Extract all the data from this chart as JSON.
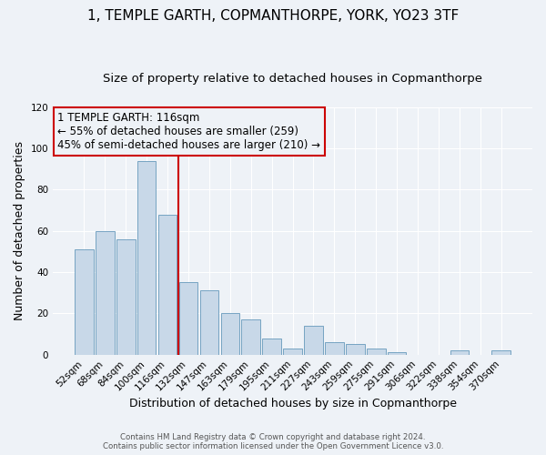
{
  "title": "1, TEMPLE GARTH, COPMANTHORPE, YORK, YO23 3TF",
  "subtitle": "Size of property relative to detached houses in Copmanthorpe",
  "xlabel": "Distribution of detached houses by size in Copmanthorpe",
  "ylabel": "Number of detached properties",
  "footer_line1": "Contains HM Land Registry data © Crown copyright and database right 2024.",
  "footer_line2": "Contains public sector information licensed under the Open Government Licence v3.0.",
  "bar_labels": [
    "52sqm",
    "68sqm",
    "84sqm",
    "100sqm",
    "116sqm",
    "132sqm",
    "147sqm",
    "163sqm",
    "179sqm",
    "195sqm",
    "211sqm",
    "227sqm",
    "243sqm",
    "259sqm",
    "275sqm",
    "291sqm",
    "306sqm",
    "322sqm",
    "338sqm",
    "354sqm",
    "370sqm"
  ],
  "bar_values": [
    51,
    60,
    56,
    94,
    68,
    35,
    31,
    20,
    17,
    8,
    3,
    14,
    6,
    5,
    3,
    1,
    0,
    0,
    2,
    0,
    2
  ],
  "bar_color": "#c8d8e8",
  "bar_edge_color": "#6699bb",
  "annotation_title": "1 TEMPLE GARTH: 116sqm",
  "annotation_line1": "← 55% of detached houses are smaller (259)",
  "annotation_line2": "45% of semi-detached houses are larger (210) →",
  "annotation_box_edge_color": "#cc0000",
  "vline_color": "#cc0000",
  "vline_x": 4.5,
  "ylim": [
    0,
    120
  ],
  "yticks": [
    0,
    20,
    40,
    60,
    80,
    100,
    120
  ],
  "background_color": "#eef2f7",
  "grid_color": "#ffffff",
  "title_fontsize": 11,
  "subtitle_fontsize": 9.5,
  "axis_label_fontsize": 9,
  "tick_label_fontsize": 7.5,
  "annotation_fontsize": 8.5
}
